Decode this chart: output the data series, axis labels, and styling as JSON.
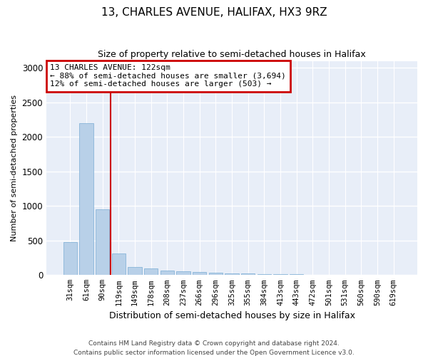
{
  "title": "13, CHARLES AVENUE, HALIFAX, HX3 9RZ",
  "subtitle": "Size of property relative to semi-detached houses in Halifax",
  "xlabel": "Distribution of semi-detached houses by size in Halifax",
  "ylabel": "Number of semi-detached properties",
  "footer_line1": "Contains HM Land Registry data © Crown copyright and database right 2024.",
  "footer_line2": "Contains public sector information licensed under the Open Government Licence v3.0.",
  "annotation_line1": "13 CHARLES AVENUE: 122sqm",
  "annotation_line2": "← 88% of semi-detached houses are smaller (3,694)",
  "annotation_line3": "12% of semi-detached houses are larger (503) →",
  "bar_color": "#b8d0e8",
  "bar_edge_color": "#7aadd4",
  "vline_color": "#cc0000",
  "annotation_box_edgecolor": "#cc0000",
  "categories": [
    "31sqm",
    "61sqm",
    "90sqm",
    "119sqm",
    "149sqm",
    "178sqm",
    "208sqm",
    "237sqm",
    "266sqm",
    "296sqm",
    "325sqm",
    "355sqm",
    "384sqm",
    "413sqm",
    "443sqm",
    "472sqm",
    "501sqm",
    "531sqm",
    "560sqm",
    "590sqm",
    "619sqm"
  ],
  "values": [
    480,
    2200,
    950,
    310,
    115,
    100,
    65,
    50,
    40,
    35,
    25,
    20,
    15,
    12,
    10,
    8,
    5,
    4,
    3,
    2,
    2
  ],
  "ylim": [
    0,
    3100
  ],
  "yticks": [
    0,
    500,
    1000,
    1500,
    2000,
    2500,
    3000
  ],
  "vline_x_index": 3,
  "figsize": [
    6.0,
    5.0
  ],
  "dpi": 100,
  "background_color": "#e8eef8"
}
